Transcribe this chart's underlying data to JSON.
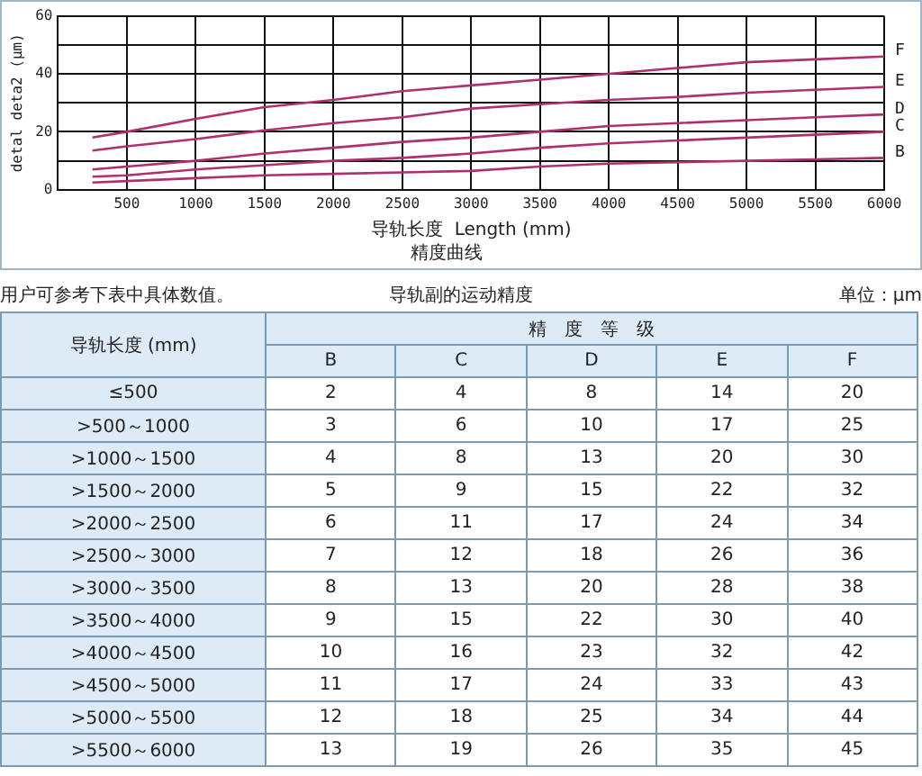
{
  "chart_data": [
    {
      "type": "line",
      "title": "精度曲线",
      "xlabel": "导轨长度  Length (mm)",
      "ylabel": "detal deta2 (μm)",
      "xlim": [
        0,
        6000
      ],
      "xticks": [
        {
          "value": 0,
          "label": null
        },
        500,
        1000,
        1500,
        2000,
        2500,
        3000,
        3500,
        4000,
        4500,
        5000,
        5500,
        6000
      ],
      "ylim": [
        0,
        60
      ],
      "yticks": [
        0,
        {
          "value": 10,
          "label": null
        },
        20,
        {
          "value": 30,
          "label": null
        },
        40,
        {
          "value": 50,
          "label": null
        },
        60
      ],
      "grid": true,
      "legend": false,
      "marker": "none",
      "x": [
        250,
        500,
        1000,
        1500,
        2000,
        2500,
        3000,
        3500,
        4000,
        4500,
        5000,
        5500,
        6000
      ],
      "series": [
        {
          "name": "F",
          "color": "#b0306e",
          "values": [
            18,
            20,
            24.5,
            28.5,
            31,
            34,
            36,
            38,
            40,
            42,
            44,
            45,
            46
          ]
        },
        {
          "name": "E",
          "color": "#b0306e",
          "values": [
            13.5,
            15,
            17.5,
            20.5,
            23,
            25,
            28,
            29.5,
            31,
            32,
            33.5,
            34.5,
            35.5
          ]
        },
        {
          "name": "D",
          "color": "#b0306e",
          "values": [
            7,
            8,
            10,
            12.5,
            14.5,
            16.5,
            18,
            20,
            22,
            23,
            24,
            25,
            26
          ]
        },
        {
          "name": "C",
          "color": "#b0306e",
          "values": [
            4.5,
            5,
            7,
            8.5,
            10,
            11,
            12.5,
            14.5,
            16,
            17,
            18,
            19,
            20
          ]
        },
        {
          "name": "B",
          "color": "#b0306e",
          "values": [
            2.5,
            3,
            4,
            5,
            5.5,
            6,
            6.5,
            8,
            9,
            9.5,
            10,
            10.5,
            11
          ]
        }
      ]
    },
    {
      "type": "other",
      "annotations": [
        "用户可参考下表中具体数值。",
        "导轨副的运动精度",
        "单位：μm"
      ],
      "ylabel": "导轨长度 (mm)",
      "legend_title": "精　度　等　级",
      "data_labels": true,
      "categories": [
        "≤500",
        ">500～1000",
        ">1000～1500",
        ">1500～2000",
        ">2000～2500",
        ">2500～3000",
        ">3000～3500",
        ">3500～4000",
        ">4000～4500",
        ">4500～5000",
        ">5000～5500",
        ">5500～6000"
      ],
      "series": [
        {
          "name": "B",
          "values": [
            2,
            3,
            4,
            5,
            6,
            7,
            8,
            9,
            10,
            11,
            12,
            13
          ]
        },
        {
          "name": "C",
          "values": [
            4,
            6,
            8,
            9,
            11,
            12,
            13,
            15,
            16,
            17,
            18,
            19
          ]
        },
        {
          "name": "D",
          "values": [
            8,
            10,
            13,
            15,
            17,
            18,
            20,
            22,
            23,
            24,
            25,
            26
          ]
        },
        {
          "name": "E",
          "values": [
            14,
            17,
            20,
            22,
            24,
            26,
            28,
            30,
            32,
            33,
            34,
            35
          ]
        },
        {
          "name": "F",
          "values": [
            20,
            25,
            30,
            32,
            34,
            36,
            38,
            40,
            42,
            43,
            44,
            45
          ]
        }
      ]
    }
  ]
}
